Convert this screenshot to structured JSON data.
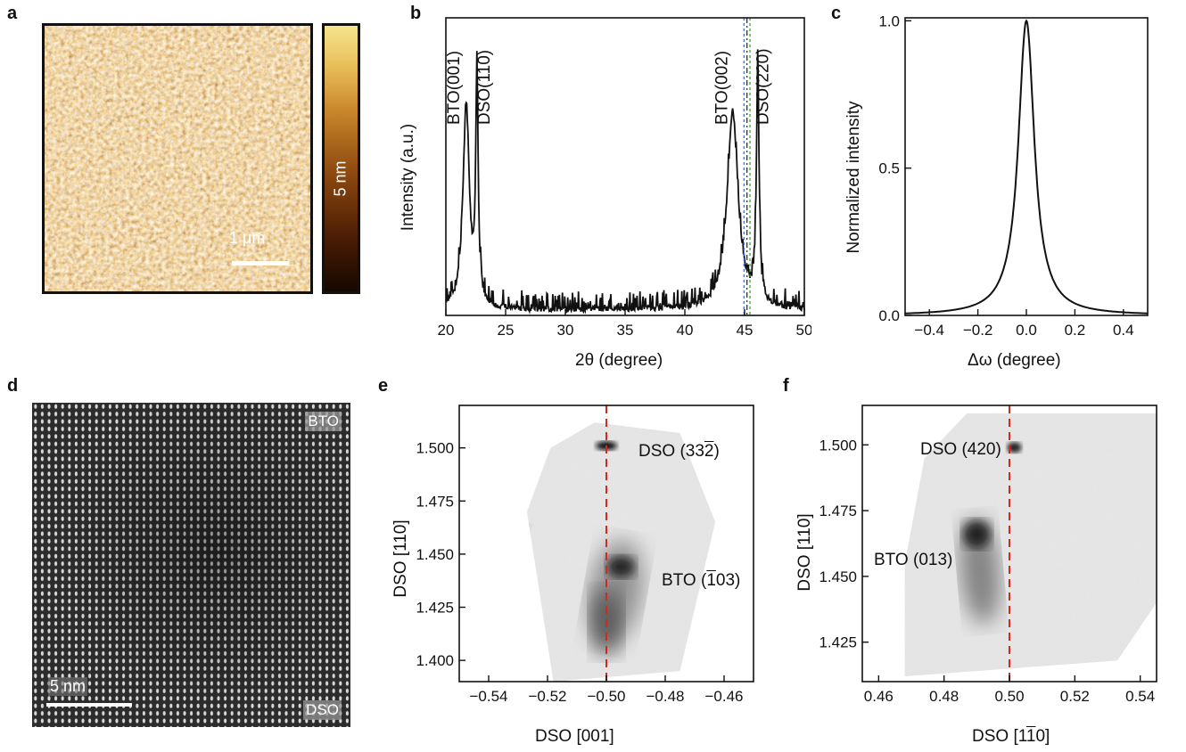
{
  "panels": {
    "a": {
      "label": "a",
      "colorbar_label": "5 nm",
      "scale_bar_label": "1 μm"
    },
    "b": {
      "label": "b",
      "chart_data": {
        "type": "line",
        "xlabel": "2θ (degree)",
        "ylabel": "Intensity (a.u.)",
        "xlim": [
          20,
          50
        ],
        "x_ticks": [
          "20",
          "25",
          "30",
          "35",
          "40",
          "45",
          "50"
        ],
        "y_log_scale": true,
        "peaks": [
          {
            "label": "BTO(001)",
            "x": 21.7
          },
          {
            "label": "DSO(110)",
            "x": 22.6
          },
          {
            "label": "BTO(002)",
            "x": 44.0
          },
          {
            "label": "DSO(220)",
            "x": 46.1
          }
        ],
        "reference_lines_x": [
          44.95,
          45.2,
          45.45
        ],
        "reference_line_colors": [
          "#4a73c9",
          "#333333",
          "#4a9a3a"
        ]
      }
    },
    "c": {
      "label": "c",
      "chart_data": {
        "type": "line",
        "xlabel": "Δω (degree)",
        "ylabel": "Normalized intensity",
        "xlim": [
          -0.5,
          0.5
        ],
        "ylim": [
          0,
          1.0
        ],
        "x_ticks": [
          "-0.4",
          "-0.2",
          "0.0",
          "0.2",
          "0.4"
        ],
        "y_ticks": [
          "0.0",
          "0.5",
          "1.0"
        ],
        "series": [
          {
            "peak_center": 0.0,
            "peak_height": 1.0
          }
        ]
      }
    },
    "d": {
      "label": "d",
      "top_tag": "BTO",
      "bottom_tag": "DSO",
      "scale_bar_label": "5 nm"
    },
    "e": {
      "label": "e",
      "chart_data": {
        "type": "heatmap",
        "xlabel": "DSO [001]",
        "ylabel": "DSO [110]",
        "xlim": [
          -0.55,
          -0.45
        ],
        "ylim": [
          1.39,
          1.52
        ],
        "x_ticks": [
          "-0.54",
          "-0.52",
          "-0.50",
          "-0.48",
          "-0.46"
        ],
        "y_ticks": [
          "1.400",
          "1.425",
          "1.450",
          "1.475",
          "1.500"
        ],
        "reference_line_x": -0.5,
        "reference_line_color": "#d42a1e",
        "spots": [
          {
            "label": "DSO (33",
            "label_bar": "2",
            "label_close": ")",
            "x": -0.5,
            "y": 1.501
          },
          {
            "label": "BTO (",
            "label_bar": "1",
            "label_close": "03)",
            "x": -0.495,
            "y": 1.444
          }
        ]
      }
    },
    "f": {
      "label": "f",
      "chart_data": {
        "type": "heatmap",
        "xlabel_prefix": "DSO [1",
        "xlabel_bar": "1",
        "xlabel_suffix": "0]",
        "ylabel": "DSO [110]",
        "xlim": [
          0.455,
          0.545
        ],
        "ylim": [
          1.41,
          1.515
        ],
        "x_ticks": [
          "0.46",
          "0.48",
          "0.50",
          "0.52",
          "0.54"
        ],
        "y_ticks": [
          "1.425",
          "1.450",
          "1.475",
          "1.500"
        ],
        "reference_line_x": 0.5,
        "reference_line_color": "#d42a1e",
        "spots": [
          {
            "label": "DSO (420)",
            "x": 0.5015,
            "y": 1.499
          },
          {
            "label": "BTO (013)",
            "x": 0.49,
            "y": 1.466
          }
        ]
      }
    }
  }
}
